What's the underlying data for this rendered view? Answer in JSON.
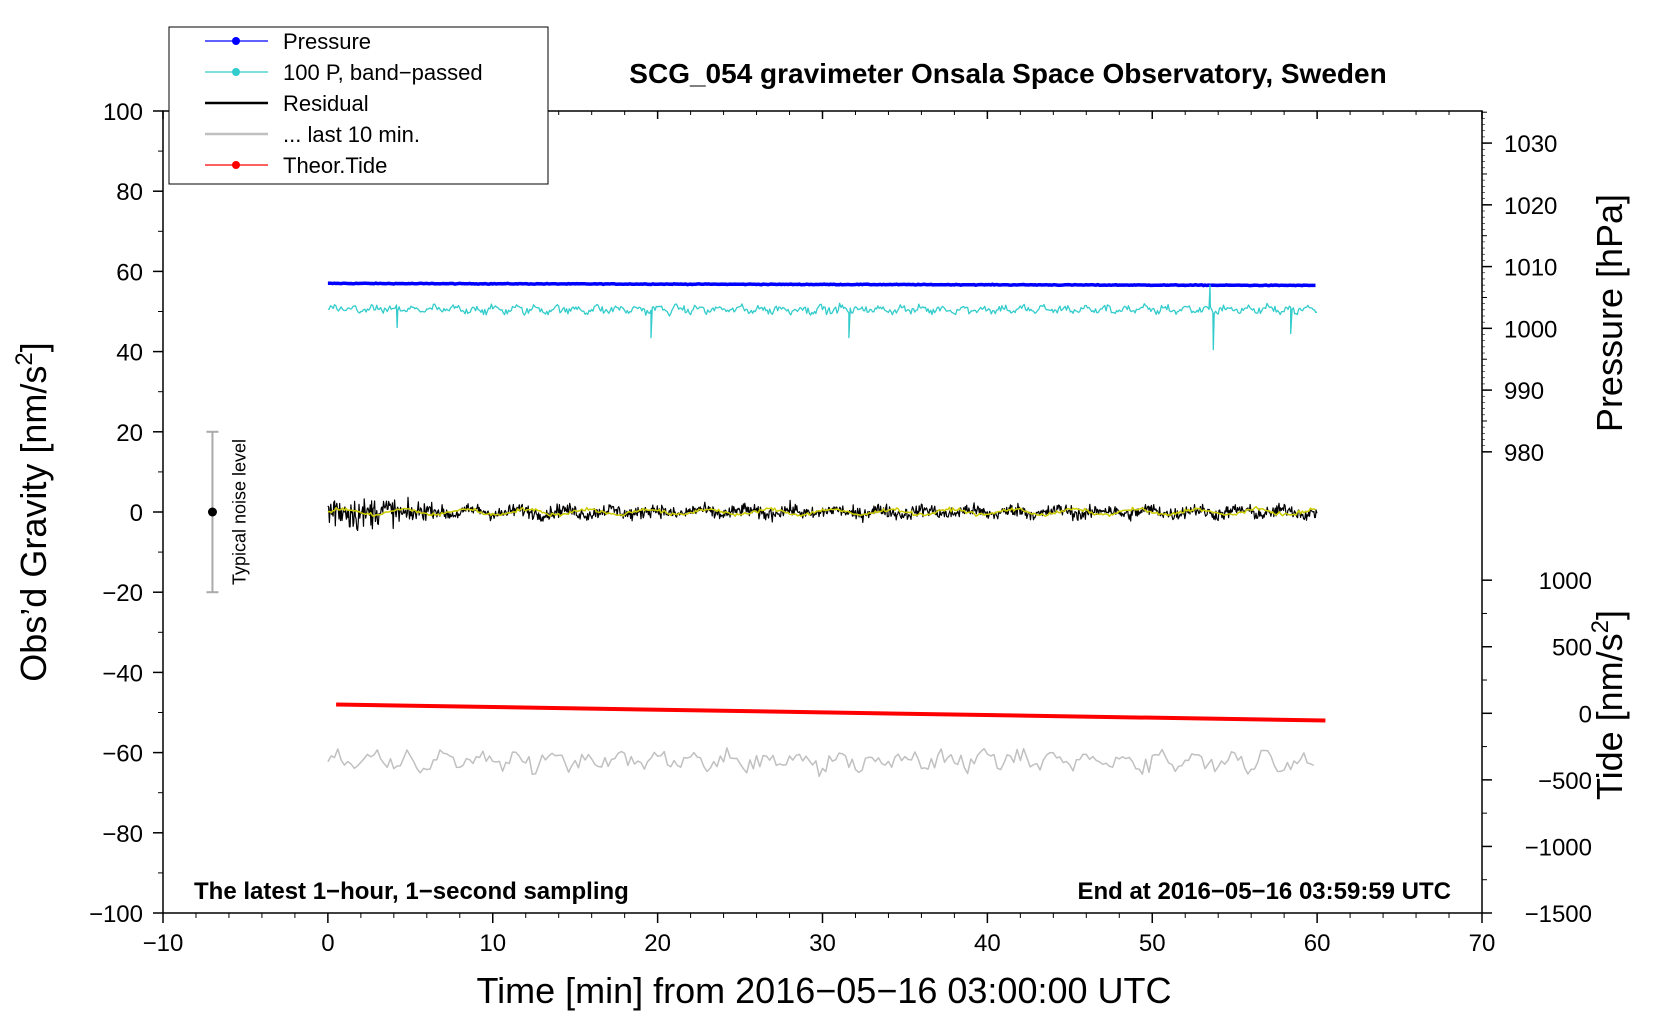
{
  "chart_data": {
    "type": "line",
    "title": "SCG_054 gravimeter Onsala Space Observatory, Sweden",
    "xlabel": "Time [min] from 2016−05−16 03:00:00 UTC",
    "ylabel_main": "Obs’d Gravity [nm/s",
    "ylabel_main_sup": "2",
    "ylabel_main_end": "]",
    "ylabel_pressure": "Pressure [hPa]",
    "ylabel_tide": "Tide [nm/s",
    "ylabel_tide_sup": "2",
    "ylabel_tide_end": "]",
    "xlim": [
      -10,
      70
    ],
    "ylim": [
      -100,
      100
    ],
    "x_ticks": [
      "−10",
      "0",
      "10",
      "20",
      "30",
      "40",
      "50",
      "60",
      "70"
    ],
    "x_tick_values": [
      -10,
      0,
      10,
      20,
      30,
      40,
      50,
      60,
      70
    ],
    "y_ticks": [
      "100",
      "80",
      "60",
      "40",
      "20",
      "0",
      "−20",
      "−40",
      "−60",
      "−80",
      "−100"
    ],
    "y_tick_values": [
      100,
      80,
      60,
      40,
      20,
      0,
      -20,
      -40,
      -60,
      -80,
      -100
    ],
    "pressure_axis": {
      "ticks": [
        "1030",
        "1020",
        "1010",
        "1000",
        "990",
        "980"
      ],
      "tick_values": [
        1030,
        1020,
        1010,
        1000,
        990,
        980
      ],
      "anchor_hpa": [
        980,
        1030
      ],
      "anchor_gravity": [
        15,
        92
      ]
    },
    "tide_axis": {
      "ticks": [
        "1000",
        "500",
        "0",
        "−500",
        "−1000",
        "−1500"
      ],
      "tick_values": [
        1000,
        500,
        0,
        -500,
        -1000,
        -1500
      ],
      "anchor_tide": [
        -1500,
        1000
      ],
      "anchor_gravity": [
        -100,
        -17
      ]
    },
    "legend": [
      {
        "label": "Pressure",
        "color": "#0000ff",
        "marker": true
      },
      {
        "label": "100 P, band−passed",
        "color": "#33cccc",
        "marker": true
      },
      {
        "label": "Residual",
        "color": "#000000",
        "marker": false
      },
      {
        "label": "... last 10 min.",
        "color": "#c0c0c0",
        "marker": false
      },
      {
        "label": "Theor.Tide",
        "color": "#ff0000",
        "marker": true
      }
    ],
    "series": [
      {
        "name": "Pressure",
        "color": "#0000ff",
        "x_range": [
          0,
          60
        ],
        "approx_gravity_level": [
          57.0,
          56.5
        ],
        "approx_hpa": [
          1007,
          1006
        ]
      },
      {
        "name": "100 P, band-passed",
        "color": "#33cccc",
        "x_range": [
          0,
          60
        ],
        "approx_center": 50.5,
        "approx_amplitude": 3.5
      },
      {
        "name": "Residual",
        "color": "#000000",
        "x_range": [
          0,
          60
        ],
        "approx_center": 0,
        "approx_amplitude_start": 12,
        "approx_amplitude_end": 4
      },
      {
        "name": "Residual smoothed",
        "color": "#cccc00",
        "x_range": [
          0,
          60
        ],
        "approx_center": 0,
        "approx_amplitude": 1.5
      },
      {
        "name": "... last 10 min.",
        "color": "#c0c0c0",
        "x_range": [
          0,
          60
        ],
        "approx_center": -62,
        "approx_amplitude": 4
      },
      {
        "name": "Theor.Tide",
        "color": "#ff0000",
        "x_range": [
          0.5,
          60.5
        ],
        "y_start": -48,
        "y_end": -52
      }
    ],
    "noise_level": {
      "label": "Typical noise level",
      "x": -7,
      "y_center": 0,
      "y_range": [
        -20,
        20
      ]
    },
    "note_left": "The latest 1−hour, 1−second sampling",
    "note_right": "End at 2016−05−16 03:59:59 UTC"
  }
}
